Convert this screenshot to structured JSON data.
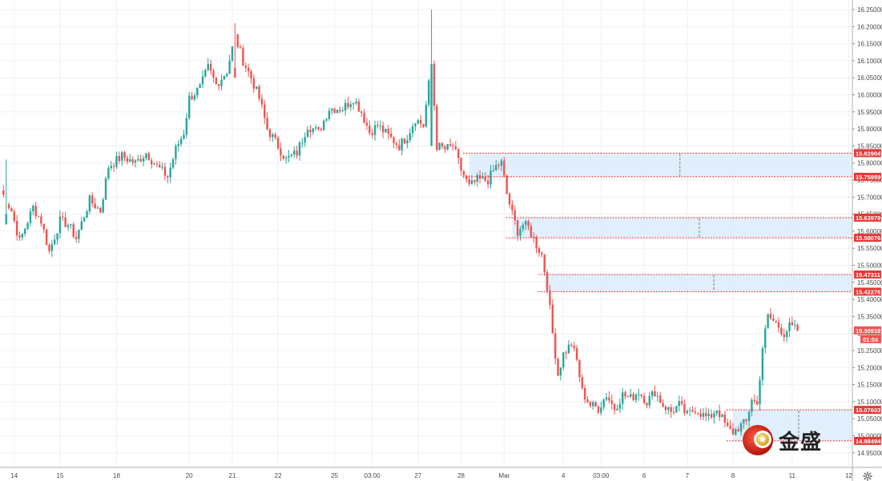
{
  "chart_data": {
    "type": "candlestick",
    "y_axis": {
      "range": [
        14.93,
        16.27
      ],
      "ticks": [
        "16.25000",
        "16.20000",
        "16.15000",
        "16.10000",
        "16.05000",
        "16.00000",
        "15.95000",
        "15.90000",
        "15.85000",
        "15.80000",
        "15.75000",
        "15.70000",
        "15.65000",
        "15.60000",
        "15.55000",
        "15.50000",
        "15.45000",
        "15.40000",
        "15.35000",
        "15.30000",
        "15.25000",
        "15.20000",
        "15.15000",
        "15.10000",
        "15.05000",
        "15.00000",
        "14.95000"
      ]
    },
    "x_axis": {
      "labels": [
        {
          "label": "14",
          "i": 5
        },
        {
          "label": "15",
          "i": 22
        },
        {
          "label": "18",
          "i": 43
        },
        {
          "label": "20",
          "i": 70
        },
        {
          "label": "21",
          "i": 86
        },
        {
          "label": "22",
          "i": 103
        },
        {
          "label": "25",
          "i": 124
        },
        {
          "label": "03:00",
          "i": 138
        },
        {
          "label": "27",
          "i": 155
        },
        {
          "label": "28",
          "i": 171
        },
        {
          "label": "Mar",
          "i": 187
        },
        {
          "label": "4",
          "i": 209
        },
        {
          "label": "03:00",
          "i": 223
        },
        {
          "label": "6",
          "i": 239
        },
        {
          "label": "7",
          "i": 255
        },
        {
          "label": "8",
          "i": 272
        },
        {
          "label": "11",
          "i": 294
        },
        {
          "label": "12",
          "i": 315
        }
      ]
    },
    "gridlines": true,
    "series_anchors": [
      [
        0,
        15.72
      ],
      [
        4,
        15.66
      ],
      [
        7,
        15.57
      ],
      [
        12,
        15.67
      ],
      [
        15,
        15.63
      ],
      [
        18,
        15.54
      ],
      [
        22,
        15.63
      ],
      [
        25,
        15.62
      ],
      [
        28,
        15.58
      ],
      [
        33,
        15.69
      ],
      [
        37,
        15.66
      ],
      [
        40,
        15.79
      ],
      [
        45,
        15.82
      ],
      [
        50,
        15.8
      ],
      [
        54,
        15.83
      ],
      [
        58,
        15.79
      ],
      [
        62,
        15.76
      ],
      [
        65,
        15.84
      ],
      [
        68,
        15.89
      ],
      [
        70,
        15.99
      ],
      [
        74,
        16.02
      ],
      [
        77,
        16.08
      ],
      [
        80,
        16.03
      ],
      [
        84,
        16.07
      ],
      [
        87,
        16.17
      ],
      [
        90,
        16.1
      ],
      [
        93,
        16.05
      ],
      [
        96,
        15.99
      ],
      [
        99,
        15.9
      ],
      [
        103,
        15.85
      ],
      [
        106,
        15.81
      ],
      [
        110,
        15.83
      ],
      [
        114,
        15.91
      ],
      [
        118,
        15.89
      ],
      [
        122,
        15.96
      ],
      [
        127,
        15.96
      ],
      [
        131,
        15.99
      ],
      [
        134,
        15.95
      ],
      [
        137,
        15.89
      ],
      [
        140,
        15.91
      ],
      [
        144,
        15.88
      ],
      [
        148,
        15.85
      ],
      [
        151,
        15.88
      ],
      [
        154,
        15.93
      ],
      [
        157,
        15.91
      ],
      [
        160,
        16.09
      ],
      [
        162,
        15.85
      ],
      [
        165,
        15.84
      ],
      [
        168,
        15.85
      ],
      [
        171,
        15.78
      ],
      [
        174,
        15.73
      ],
      [
        177,
        15.75
      ],
      [
        181,
        15.75
      ],
      [
        184,
        15.79
      ],
      [
        186,
        15.8
      ],
      [
        188,
        15.71
      ],
      [
        190,
        15.65
      ],
      [
        192,
        15.6
      ],
      [
        194,
        15.62
      ],
      [
        196,
        15.61
      ],
      [
        199,
        15.56
      ],
      [
        201,
        15.53
      ],
      [
        203,
        15.44
      ],
      [
        205,
        15.3
      ],
      [
        207,
        15.18
      ],
      [
        209,
        15.24
      ],
      [
        212,
        15.27
      ],
      [
        214,
        15.22
      ],
      [
        216,
        15.13
      ],
      [
        219,
        15.09
      ],
      [
        222,
        15.08
      ],
      [
        225,
        15.12
      ],
      [
        228,
        15.08
      ],
      [
        231,
        15.12
      ],
      [
        234,
        15.11
      ],
      [
        237,
        15.13
      ],
      [
        240,
        15.1
      ],
      [
        243,
        15.13
      ],
      [
        246,
        15.09
      ],
      [
        249,
        15.07
      ],
      [
        252,
        15.09
      ],
      [
        255,
        15.06
      ],
      [
        258,
        15.08
      ],
      [
        261,
        15.06
      ],
      [
        263,
        15.05
      ],
      [
        266,
        15.08
      ],
      [
        268,
        15.05
      ],
      [
        270,
        15.02
      ],
      [
        272,
        15.01
      ],
      [
        275,
        15.03
      ],
      [
        277,
        15.04
      ],
      [
        279,
        15.11
      ],
      [
        281,
        15.09
      ],
      [
        283,
        15.26
      ],
      [
        285,
        15.35
      ],
      [
        288,
        15.33
      ],
      [
        291,
        15.3
      ],
      [
        293,
        15.32
      ],
      [
        296,
        15.31
      ]
    ],
    "spikes": [
      {
        "i": 160,
        "high": 16.25,
        "low": 15.85
      },
      {
        "i": 87,
        "high": 16.21,
        "low": 16.08
      },
      {
        "i": 2,
        "high": 15.81,
        "low": 15.62
      }
    ],
    "levels": [
      {
        "top": 15.82904,
        "bottom": 15.75959,
        "start_i": 174,
        "label_top": "15.82904",
        "label_bottom": "15.75959"
      },
      {
        "top": 15.63979,
        "bottom": 15.58076,
        "start_i": 190,
        "label_top": "15.63979",
        "label_bottom": "15.58076"
      },
      {
        "top": 15.47311,
        "bottom": 15.42276,
        "start_i": 202,
        "label_top": "15.47311",
        "label_bottom": "15.42276"
      },
      {
        "top": 15.07603,
        "bottom": 14.98494,
        "start_i": 272,
        "label_top": "15.07603",
        "label_bottom": "14.98494"
      }
    ],
    "last_price": {
      "value": 15.30918,
      "label": "15.30918",
      "countdown": "01:04"
    },
    "colors": {
      "up": "#26a69a",
      "down": "#ef5350",
      "grid": "#eef0f3",
      "axis_text": "#4a4a4a",
      "zone_fill": "#dcecfb",
      "level_line": "#e53935",
      "label_bg": "#e53935",
      "price_badge": "#ef5350"
    }
  },
  "watermark": {
    "logo_text": "金盛",
    "logo_icon": "gold-coin-logo-icon"
  },
  "settings_icon": "gear-icon"
}
